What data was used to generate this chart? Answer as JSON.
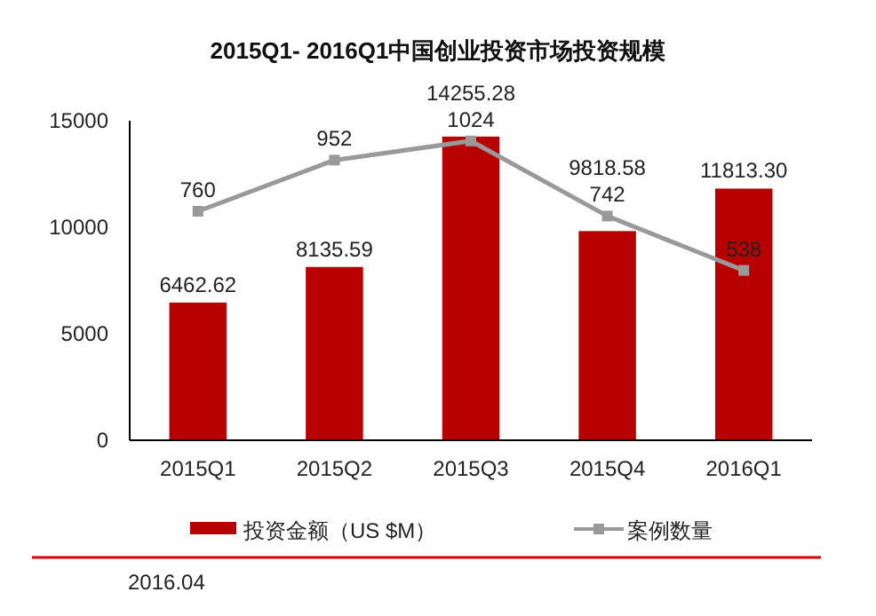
{
  "chart_data": {
    "type": "bar",
    "title": "2015Q1- 2016Q1中国创业投资市场投资规模",
    "categories": [
      "2015Q1",
      "2015Q2",
      "2015Q3",
      "2015Q4",
      "2016Q1"
    ],
    "series": [
      {
        "name": "投资金额（US $M）",
        "color": "#b80000",
        "values": [
          6462.62,
          8135.59,
          14255.28,
          9818.58,
          11813.3
        ],
        "value_labels": [
          "6462.62",
          "8135.59",
          "14255.28",
          "9818.58",
          "11813.30"
        ]
      },
      {
        "name": "案例数量",
        "type": "line",
        "axis": "y2",
        "color": "#999999",
        "marker": "square",
        "values": [
          760,
          952,
          1024,
          742,
          538
        ]
      }
    ],
    "ylim": [
      0,
      15000
    ],
    "yticks": [
      0,
      5000,
      10000,
      15000
    ],
    "y2lim": [
      -100,
      1100
    ],
    "data_labels": true,
    "legend": "bottom",
    "grid": false,
    "annotations": [
      "2016.04"
    ]
  }
}
